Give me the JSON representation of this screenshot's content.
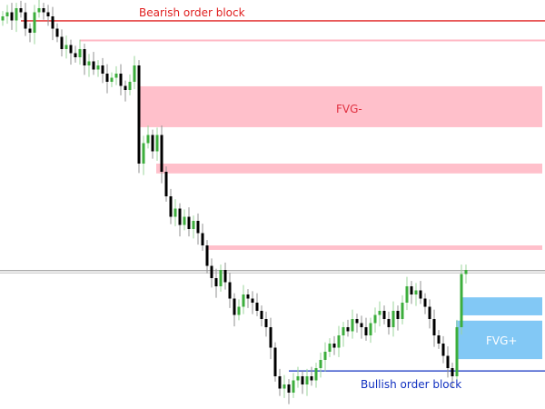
{
  "chart_data": {
    "type": "candlestick",
    "title": "",
    "xlabel": "",
    "ylabel": "",
    "ylim": [
      0,
      100
    ],
    "grid": false,
    "colors": {
      "bull": "#3cae3c",
      "bear": "#000000",
      "bearish_zone": "#ffc0cb",
      "bullish_zone": "#82c8f5",
      "bearish_line": "#e02020",
      "bullish_line": "#1030c0",
      "price_line": "#909090"
    },
    "close": [
      96,
      97,
      95,
      98,
      97,
      93,
      92,
      97,
      98,
      97,
      96,
      93,
      91,
      88,
      89,
      87,
      86,
      88,
      84,
      85,
      83,
      84,
      82,
      80,
      81,
      82,
      79,
      78,
      80,
      84,
      60,
      65,
      67,
      63,
      67,
      58,
      52,
      47,
      49,
      45,
      47,
      44,
      46,
      43,
      40,
      35,
      32,
      30,
      34,
      31,
      27,
      23,
      25,
      28,
      27,
      26,
      24,
      22,
      20,
      15,
      8,
      5,
      6,
      4,
      7,
      8,
      6,
      8,
      7,
      10,
      12,
      14,
      16,
      15,
      18,
      20,
      19,
      22,
      21,
      20,
      18,
      21,
      23,
      24,
      22,
      20,
      24,
      22,
      26,
      30,
      28,
      29,
      27,
      25,
      22,
      18,
      16,
      13,
      10,
      8,
      20,
      33,
      34
    ],
    "levels": [
      {
        "name": "bearish-order-block",
        "label": "Bearish order block",
        "price": 94.9,
        "start_index": 4,
        "color": "#e02020"
      },
      {
        "name": "bullish-order-block",
        "label": "Bullish order block",
        "price": 9.3,
        "start_index": 63,
        "color": "#1030c0"
      },
      {
        "name": "current-price",
        "label": "",
        "price": 33.6,
        "start_index": 0,
        "color": "#909090"
      },
      {
        "name": "bearish-thin-level",
        "label": "",
        "price": 90.1,
        "start_index": 17,
        "color": "#ffb8c4"
      }
    ],
    "zones": [
      {
        "name": "fvg-minus",
        "label": "FVG-",
        "top": 78.9,
        "bottom": 68.9,
        "start_index": 30,
        "color": "#ffc0cb"
      },
      {
        "name": "bearish-zone-2",
        "label": "",
        "top": 60.0,
        "bottom": 57.6,
        "start_index": 34,
        "color": "#ffc0cb"
      },
      {
        "name": "bearish-zone-3",
        "label": "",
        "top": 40.0,
        "bottom": 38.9,
        "start_index": 45,
        "color": "#ffc0cb"
      },
      {
        "name": "bullish-zone-upper",
        "label": "",
        "top": 27.3,
        "bottom": 22.9,
        "start_index": 101,
        "color": "#82c8f5"
      },
      {
        "name": "fvg-plus",
        "label": "FVG+",
        "top": 21.6,
        "bottom": 12.2,
        "start_index": 100,
        "color": "#82c8f5"
      }
    ]
  }
}
